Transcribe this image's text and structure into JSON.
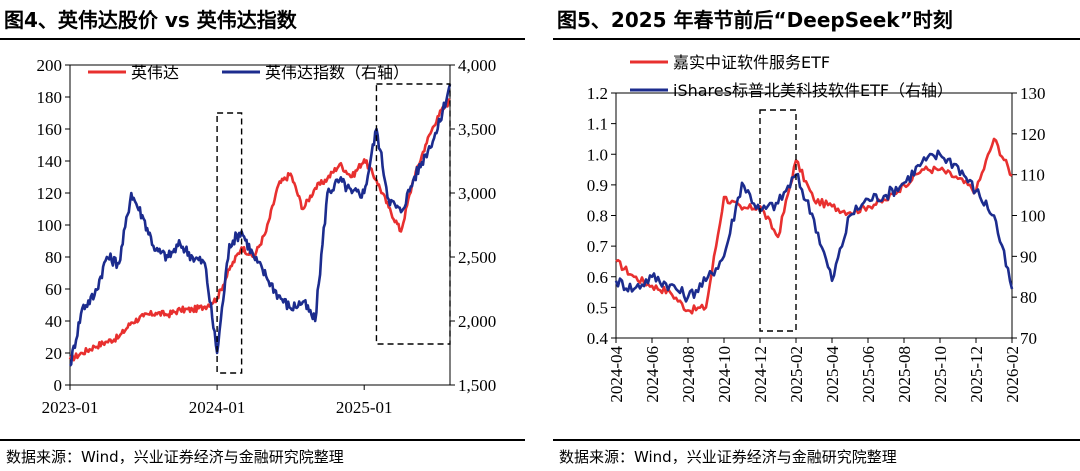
{
  "source_note": "数据来源：Wind，兴业证券经济与金融研究院整理",
  "chart_data": [
    {
      "type": "line",
      "title": "图4、英伟达股价 vs 英伟达指数",
      "x_tick_labels": [
        "2023-01",
        "2024-01",
        "2025-01"
      ],
      "y_left": {
        "min": 0,
        "max": 200,
        "ticks": [
          "0",
          "20",
          "40",
          "60",
          "80",
          "100",
          "120",
          "140",
          "160",
          "180",
          "200"
        ]
      },
      "y_right": {
        "min": 1500,
        "max": 4000,
        "ticks": [
          "1,500",
          "2,000",
          "2,500",
          "3,000",
          "3,500",
          "4,000"
        ]
      },
      "legend": {
        "placement": "top",
        "items": [
          "英伟达",
          "英伟达指数（右轴）"
        ]
      },
      "series": [
        {
          "name": "英伟达",
          "axis": "left",
          "color": "#e8302f",
          "x": [
            "2023-01",
            "2023-02",
            "2023-03",
            "2023-04",
            "2023-05",
            "2023-06",
            "2023-07",
            "2023-08",
            "2023-09",
            "2023-10",
            "2023-11",
            "2023-12",
            "2024-01",
            "2024-02",
            "2024-03",
            "2024-04",
            "2024-05",
            "2024-06",
            "2024-07",
            "2024-08",
            "2024-09",
            "2024-10",
            "2024-11",
            "2024-12",
            "2025-01",
            "2025-02",
            "2025-03",
            "2025-04",
            "2025-05",
            "2025-06",
            "2025-07",
            "2025-08"
          ],
          "values": [
            16,
            20,
            24,
            27,
            30,
            39,
            43,
            45,
            44,
            47,
            47,
            49,
            54,
            72,
            86,
            80,
            96,
            125,
            132,
            110,
            123,
            129,
            138,
            130,
            141,
            128,
            111,
            96,
            128,
            150,
            168,
            178
          ]
        },
        {
          "name": "英伟达指数（右轴）",
          "axis": "right",
          "color": "#1c2c8e",
          "x": [
            "2023-01",
            "2023-02",
            "2023-03",
            "2023-04",
            "2023-05",
            "2023-06",
            "2023-07",
            "2023-08",
            "2023-09",
            "2023-10",
            "2023-11",
            "2023-12",
            "2024-01",
            "2024-02",
            "2024-03",
            "2024-04",
            "2024-05",
            "2024-06",
            "2024-07",
            "2024-08",
            "2024-09",
            "2024-10",
            "2024-11",
            "2024-12",
            "2025-01",
            "2025-02",
            "2025-03",
            "2025-04",
            "2025-05",
            "2025-06",
            "2025-07",
            "2025-08"
          ],
          "values": [
            1650,
            2100,
            2200,
            2500,
            2450,
            3000,
            2800,
            2550,
            2500,
            2600,
            2500,
            2450,
            1750,
            2600,
            2700,
            2500,
            2350,
            2200,
            2100,
            2150,
            2000,
            3000,
            3100,
            3000,
            3000,
            3500,
            2950,
            2850,
            3100,
            3300,
            3500,
            3850
          ]
        }
      ]
    },
    {
      "type": "line",
      "title": "图5、2025 年春节前后“DeepSeek”时刻",
      "x_tick_labels": [
        "2024-04",
        "2024-06",
        "2024-08",
        "2024-10",
        "2024-12",
        "2025-02",
        "2025-04",
        "2025-06",
        "2025-08",
        "2025-10",
        "2025-12",
        "2026-02"
      ],
      "y_left": {
        "min": 0.4,
        "max": 1.2,
        "ticks": [
          "0.4",
          "0.5",
          "0.6",
          "0.7",
          "0.8",
          "0.9",
          "1.0",
          "1.1",
          "1.2"
        ]
      },
      "y_right": {
        "min": 70,
        "max": 130,
        "ticks": [
          "70",
          "80",
          "90",
          "100",
          "110",
          "120",
          "130"
        ]
      },
      "legend": {
        "placement": "top-left",
        "items": [
          "嘉实中证软件服务ETF",
          "iShares标普北美科技软件ETF（右轴）"
        ]
      },
      "series": [
        {
          "name": "嘉实中证软件服务ETF",
          "axis": "left",
          "color": "#e8302f",
          "x": [
            "2024-04",
            "2024-05",
            "2024-06",
            "2024-07",
            "2024-08",
            "2024-09",
            "2024-10",
            "2024-11",
            "2024-12",
            "2025-01",
            "2025-02",
            "2025-03",
            "2025-04",
            "2025-05",
            "2025-06",
            "2025-07",
            "2025-08",
            "2025-09",
            "2025-10",
            "2025-11",
            "2025-12",
            "2026-01",
            "2026-02"
          ],
          "values": [
            0.65,
            0.6,
            0.57,
            0.55,
            0.49,
            0.5,
            0.86,
            0.82,
            0.83,
            0.73,
            0.98,
            0.85,
            0.83,
            0.81,
            0.83,
            0.85,
            0.9,
            0.95,
            0.95,
            0.92,
            0.88,
            1.05,
            0.93
          ]
        },
        {
          "name": "iShares标普北美科技软件ETF（右轴）",
          "axis": "right",
          "color": "#1c2c8e",
          "x": [
            "2024-04",
            "2024-05",
            "2024-06",
            "2024-07",
            "2024-08",
            "2024-09",
            "2024-10",
            "2024-11",
            "2024-12",
            "2025-01",
            "2025-02",
            "2025-03",
            "2025-04",
            "2025-05",
            "2025-06",
            "2025-07",
            "2025-08",
            "2025-09",
            "2025-10",
            "2025-11",
            "2025-12",
            "2026-01",
            "2026-02"
          ],
          "values": [
            84,
            82,
            85,
            83,
            80,
            84,
            90,
            108,
            101,
            103,
            110,
            99,
            84,
            100,
            104,
            105,
            108,
            113,
            115,
            112,
            106,
            100,
            82
          ]
        }
      ]
    }
  ]
}
